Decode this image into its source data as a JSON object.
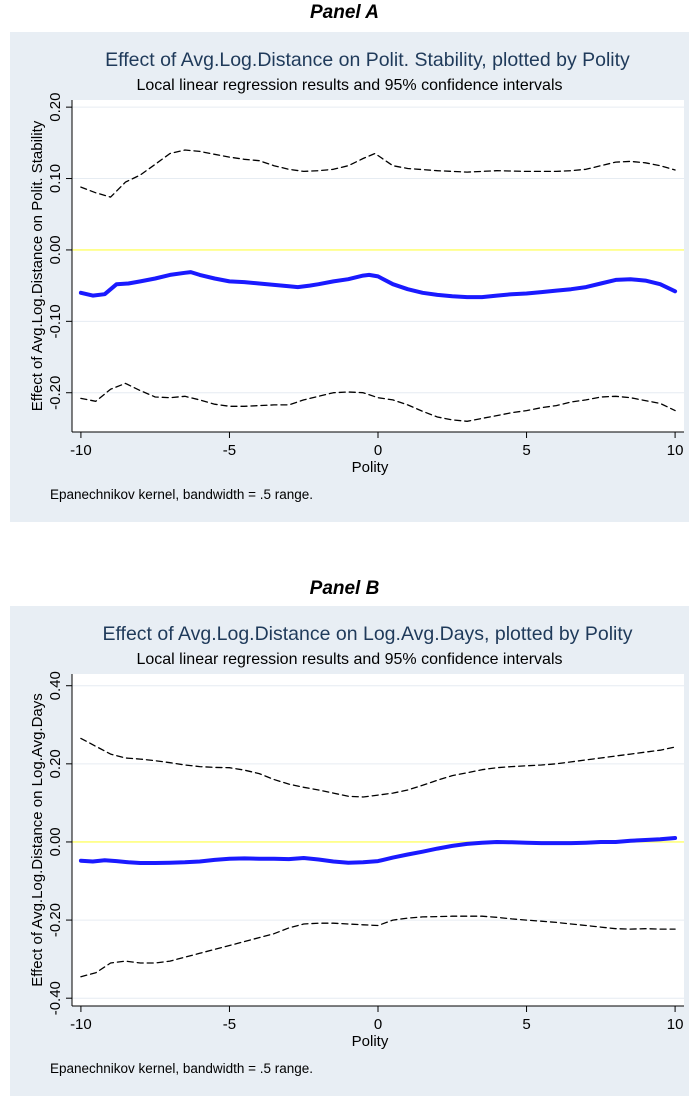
{
  "panels": [
    {
      "label": "Panel A"
    },
    {
      "label": "Panel B"
    }
  ],
  "colors": {
    "background": "#e8eef4",
    "plot_region": "#ffffff",
    "estimate_line": "#1a1aff",
    "ci_line": "#000000",
    "zero_line": "#ffff66",
    "grid": "#e6ecf2",
    "title": "#1f3a5a"
  },
  "chart_data": [
    {
      "type": "line",
      "title": "Effect of Avg.Log.Distance on Polit. Stability, plotted by Polity",
      "subtitle": "Local linear regression results and 95% confidence intervals",
      "xlabel": "Polity",
      "ylabel": "Effect of Avg.Log.Distance on Polit. Stability",
      "note": "Epanechnikov kernel, bandwidth = .5 range.",
      "xlim": [
        -10.3,
        10.3
      ],
      "ylim": [
        -0.255,
        0.21
      ],
      "x_ticks": [
        -10,
        -5,
        0,
        5,
        10
      ],
      "x_tick_labels": [
        "-10",
        "-5",
        "0",
        "5",
        "10"
      ],
      "y_ticks": [
        -0.2,
        -0.1,
        0.0,
        0.1,
        0.2
      ],
      "y_tick_labels": [
        "-0.20",
        "-0.10",
        "0.00",
        "0.10",
        "0.20"
      ],
      "grid": true,
      "reference_line": 0.0,
      "series": [
        {
          "role": "estimate",
          "x": [
            -10,
            -9.6,
            -9.2,
            -8.8,
            -8.4,
            -8,
            -7.5,
            -7,
            -6.5,
            -6.3,
            -6,
            -5.5,
            -5,
            -4.5,
            -4,
            -3.5,
            -3,
            -2.7,
            -2.3,
            -2,
            -1.5,
            -1,
            -0.5,
            -0.3,
            0,
            0.5,
            1,
            1.5,
            2,
            2.5,
            3,
            3.5,
            4,
            4.5,
            5,
            5.5,
            6,
            6.5,
            7,
            7.5,
            8,
            8.5,
            9,
            9.5,
            10
          ],
          "y": [
            -0.06,
            -0.064,
            -0.062,
            -0.048,
            -0.047,
            -0.044,
            -0.04,
            -0.035,
            -0.032,
            -0.031,
            -0.035,
            -0.04,
            -0.044,
            -0.045,
            -0.047,
            -0.049,
            -0.051,
            -0.052,
            -0.05,
            -0.048,
            -0.044,
            -0.041,
            -0.036,
            -0.035,
            -0.037,
            -0.048,
            -0.055,
            -0.06,
            -0.063,
            -0.065,
            -0.066,
            -0.066,
            -0.064,
            -0.062,
            -0.061,
            -0.059,
            -0.057,
            -0.055,
            -0.052,
            -0.047,
            -0.042,
            -0.041,
            -0.043,
            -0.048,
            -0.058
          ]
        },
        {
          "role": "upper_ci",
          "x": [
            -10,
            -9.5,
            -9,
            -8.5,
            -8,
            -7.5,
            -7,
            -6.5,
            -6,
            -5.5,
            -5,
            -4.5,
            -4,
            -3.5,
            -3,
            -2.5,
            -2,
            -1.5,
            -1,
            -0.5,
            -0.1,
            0.5,
            1,
            2,
            3,
            4,
            5,
            6,
            6.5,
            7,
            7.5,
            8,
            8.5,
            9,
            9.5,
            10
          ],
          "y": [
            0.088,
            0.08,
            0.074,
            0.095,
            0.105,
            0.12,
            0.135,
            0.14,
            0.138,
            0.134,
            0.13,
            0.127,
            0.125,
            0.118,
            0.113,
            0.11,
            0.111,
            0.113,
            0.118,
            0.128,
            0.135,
            0.118,
            0.114,
            0.111,
            0.109,
            0.111,
            0.11,
            0.11,
            0.111,
            0.113,
            0.118,
            0.123,
            0.124,
            0.122,
            0.118,
            0.112
          ]
        },
        {
          "role": "lower_ci",
          "x": [
            -10,
            -9.5,
            -9,
            -8.5,
            -8,
            -7.5,
            -7,
            -6.5,
            -6,
            -5.5,
            -5,
            -4.5,
            -4,
            -3.5,
            -3,
            -2.5,
            -2,
            -1.5,
            -1,
            -0.5,
            0,
            0.5,
            1,
            1.5,
            2,
            2.5,
            3,
            3.5,
            4,
            4.5,
            5,
            5.5,
            6,
            6.5,
            7,
            7.5,
            8,
            8.5,
            9,
            9.5,
            10
          ],
          "y": [
            -0.208,
            -0.212,
            -0.195,
            -0.187,
            -0.197,
            -0.206,
            -0.207,
            -0.205,
            -0.21,
            -0.216,
            -0.219,
            -0.219,
            -0.218,
            -0.217,
            -0.217,
            -0.21,
            -0.205,
            -0.2,
            -0.199,
            -0.2,
            -0.207,
            -0.21,
            -0.217,
            -0.226,
            -0.234,
            -0.238,
            -0.24,
            -0.236,
            -0.232,
            -0.228,
            -0.225,
            -0.221,
            -0.218,
            -0.213,
            -0.21,
            -0.206,
            -0.205,
            -0.207,
            -0.211,
            -0.215,
            -0.225
          ]
        }
      ]
    },
    {
      "type": "line",
      "title": "Effect of Avg.Log.Distance on Log.Avg.Days, plotted by Polity",
      "subtitle": "Local linear regression results and 95% confidence intervals",
      "xlabel": "Polity",
      "ylabel": "Effect of Avg.Log.Distance on Log.Avg.Days",
      "note": "Epanechnikov kernel, bandwidth = .5 range.",
      "xlim": [
        -10.3,
        10.3
      ],
      "ylim": [
        -0.42,
        0.43
      ],
      "x_ticks": [
        -10,
        -5,
        0,
        5,
        10
      ],
      "x_tick_labels": [
        "-10",
        "-5",
        "0",
        "5",
        "10"
      ],
      "y_ticks": [
        -0.4,
        -0.2,
        0.0,
        0.2,
        0.4
      ],
      "y_tick_labels": [
        "-0.40",
        "-0.20",
        "0.00",
        "0.20",
        "0.40"
      ],
      "grid": true,
      "reference_line": 0.0,
      "series": [
        {
          "role": "estimate",
          "x": [
            -10,
            -9.6,
            -9.2,
            -8.8,
            -8.4,
            -8,
            -7.5,
            -7,
            -6.5,
            -6,
            -5.5,
            -5,
            -4.5,
            -4,
            -3.5,
            -3,
            -2.5,
            -2,
            -1.5,
            -1,
            -0.5,
            0,
            0.5,
            1,
            1.5,
            2,
            2.5,
            3,
            3.5,
            4,
            4.5,
            5,
            5.5,
            6,
            6.5,
            7,
            7.5,
            8,
            8.5,
            9,
            9.5,
            10
          ],
          "y": [
            -0.048,
            -0.05,
            -0.047,
            -0.049,
            -0.052,
            -0.054,
            -0.054,
            -0.053,
            -0.052,
            -0.05,
            -0.046,
            -0.043,
            -0.042,
            -0.043,
            -0.043,
            -0.044,
            -0.041,
            -0.045,
            -0.05,
            -0.053,
            -0.052,
            -0.049,
            -0.04,
            -0.032,
            -0.025,
            -0.017,
            -0.01,
            -0.005,
            -0.002,
            0.0,
            -0.001,
            -0.002,
            -0.003,
            -0.003,
            -0.003,
            -0.002,
            0.0,
            0.0,
            0.003,
            0.005,
            0.007,
            0.01
          ]
        },
        {
          "role": "upper_ci",
          "x": [
            -10,
            -9.5,
            -9,
            -8.5,
            -8,
            -7.5,
            -7,
            -6.5,
            -6,
            -5.5,
            -5,
            -4.5,
            -4,
            -3.5,
            -3,
            -2.5,
            -2,
            -1.5,
            -1,
            -0.5,
            0,
            0.5,
            1,
            1.5,
            2,
            2.5,
            3,
            3.5,
            4,
            4.5,
            5,
            5.5,
            6,
            6.5,
            7,
            7.5,
            8,
            8.5,
            9,
            9.5,
            10
          ],
          "y": [
            0.265,
            0.245,
            0.225,
            0.215,
            0.212,
            0.208,
            0.203,
            0.197,
            0.193,
            0.191,
            0.19,
            0.184,
            0.175,
            0.16,
            0.148,
            0.14,
            0.133,
            0.125,
            0.117,
            0.115,
            0.12,
            0.125,
            0.133,
            0.145,
            0.158,
            0.17,
            0.177,
            0.185,
            0.19,
            0.193,
            0.195,
            0.197,
            0.2,
            0.205,
            0.21,
            0.215,
            0.22,
            0.225,
            0.23,
            0.235,
            0.243
          ]
        },
        {
          "role": "lower_ci",
          "x": [
            -10,
            -9.5,
            -9,
            -8.5,
            -8,
            -7.5,
            -7,
            -6.5,
            -6,
            -5.5,
            -5,
            -4.5,
            -4,
            -3.5,
            -3,
            -2.5,
            -2,
            -1.5,
            -1,
            -0.5,
            0,
            0.5,
            1,
            1.5,
            2,
            2.5,
            3,
            3.5,
            4,
            4.5,
            5,
            5.5,
            6,
            6.5,
            7,
            7.5,
            8,
            8.5,
            9,
            9.5,
            10
          ],
          "y": [
            -0.345,
            -0.335,
            -0.31,
            -0.305,
            -0.31,
            -0.31,
            -0.305,
            -0.295,
            -0.285,
            -0.275,
            -0.265,
            -0.255,
            -0.245,
            -0.235,
            -0.22,
            -0.21,
            -0.208,
            -0.208,
            -0.21,
            -0.212,
            -0.214,
            -0.2,
            -0.195,
            -0.192,
            -0.191,
            -0.19,
            -0.19,
            -0.19,
            -0.193,
            -0.197,
            -0.2,
            -0.203,
            -0.206,
            -0.21,
            -0.214,
            -0.218,
            -0.222,
            -0.223,
            -0.222,
            -0.223,
            -0.223
          ]
        }
      ]
    }
  ]
}
